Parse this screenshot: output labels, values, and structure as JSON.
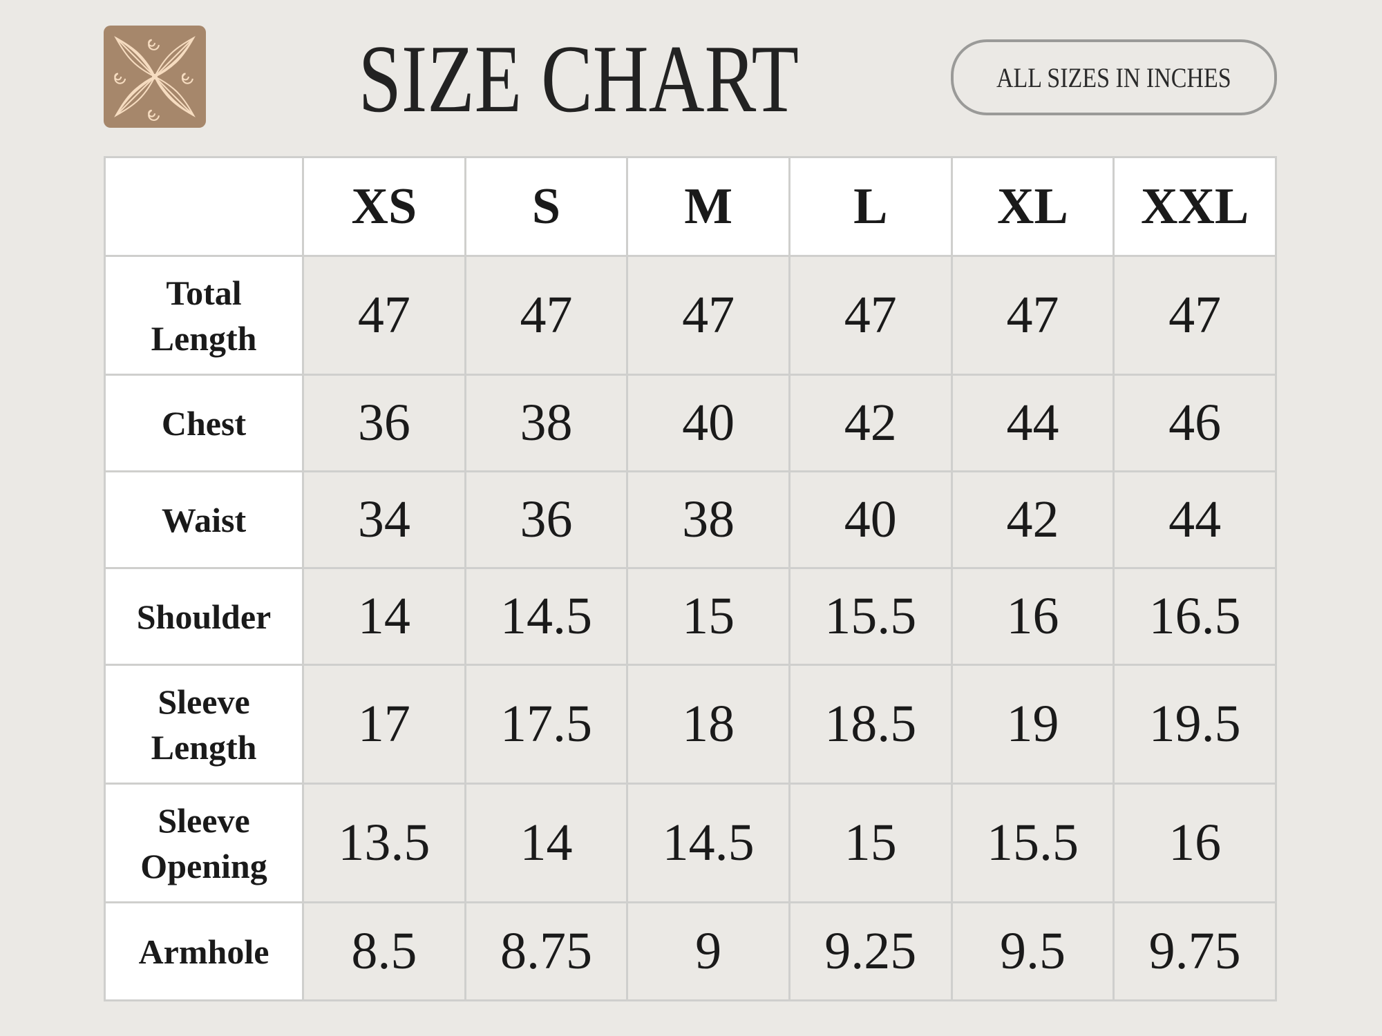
{
  "header": {
    "title": "SIZE CHART",
    "unit_note": "ALL SIZES IN INCHES",
    "logo_icon": "floral-petal-logo"
  },
  "colors": {
    "logo_bg": "#a6876b",
    "logo_line": "#f6dcc0",
    "page_bg": "#ebe9e5"
  },
  "table": {
    "sizes": [
      "XS",
      "S",
      "M",
      "L",
      "XL",
      "XXL"
    ],
    "rows": [
      {
        "label": "Total Length",
        "values": [
          "47",
          "47",
          "47",
          "47",
          "47",
          "47"
        ]
      },
      {
        "label": "Chest",
        "values": [
          "36",
          "38",
          "40",
          "42",
          "44",
          "46"
        ]
      },
      {
        "label": "Waist",
        "values": [
          "34",
          "36",
          "38",
          "40",
          "42",
          "44"
        ]
      },
      {
        "label": "Shoulder",
        "values": [
          "14",
          "14.5",
          "15",
          "15.5",
          "16",
          "16.5"
        ]
      },
      {
        "label": "Sleeve Length",
        "values": [
          "17",
          "17.5",
          "18",
          "18.5",
          "19",
          "19.5"
        ]
      },
      {
        "label": "Sleeve Opening",
        "values": [
          "13.5",
          "14",
          "14.5",
          "15",
          "15.5",
          "16"
        ]
      },
      {
        "label": "Armhole",
        "values": [
          "8.5",
          "8.75",
          "9",
          "9.25",
          "9.5",
          "9.75"
        ]
      }
    ]
  }
}
